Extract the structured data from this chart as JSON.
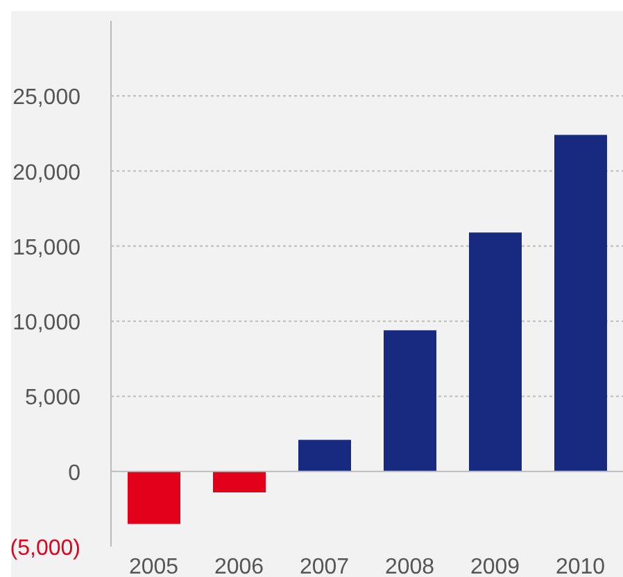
{
  "chart_data": {
    "type": "bar",
    "categories": [
      "2005",
      "2006",
      "2007",
      "2008",
      "2009",
      "2010"
    ],
    "values": [
      -3500,
      -1400,
      2100,
      9400,
      15900,
      22400
    ],
    "colors": [
      "#e3001b",
      "#e3001b",
      "#172a80",
      "#172a80",
      "#172a80",
      "#172a80"
    ],
    "ylim": [
      -5000,
      30000
    ],
    "yticks": [
      {
        "value": -5000,
        "label": "(5,000)"
      },
      0,
      {
        "value": 5000,
        "label": "5,000"
      },
      {
        "value": 10000,
        "label": "10,000"
      },
      {
        "value": 15000,
        "label": "15,000"
      },
      {
        "value": 20000,
        "label": "20,000"
      },
      {
        "value": 25000,
        "label": "25,000"
      }
    ],
    "grid": "y"
  }
}
